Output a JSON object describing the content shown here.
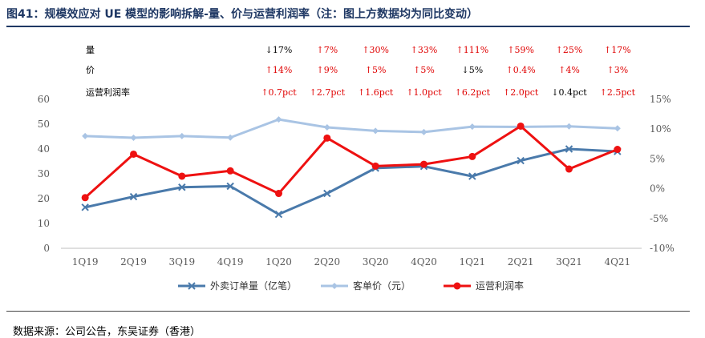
{
  "title": "图41：规模效应对 UE 模型的影响拆解-量、价与运营利润率（注：图上方数据均为同比变动）",
  "source": "数据来源：公司公告，东吴证券（香港）",
  "chart_data": {
    "type": "line",
    "categories": [
      "1Q19",
      "2Q19",
      "3Q19",
      "4Q19",
      "1Q20",
      "2Q20",
      "3Q20",
      "4Q20",
      "1Q21",
      "2Q21",
      "3Q21",
      "4Q21"
    ],
    "left_axis": {
      "ylim": [
        0,
        60
      ],
      "ticks": [
        "0",
        "10",
        "20",
        "30",
        "40",
        "50",
        "60"
      ]
    },
    "right_axis": {
      "ylim": [
        -10,
        15
      ],
      "ticks": [
        "-10%",
        "-5%",
        "0%",
        "5%",
        "10%",
        "15%"
      ]
    },
    "series": [
      {
        "name": "外卖订单量（亿笔）",
        "axis": "left",
        "color": "#4a7aab",
        "marker": "x",
        "values": [
          16.5,
          20.8,
          24.6,
          25,
          13.7,
          22.1,
          32.3,
          33,
          29,
          35.3,
          40,
          39
        ]
      },
      {
        "name": "客单价（元）",
        "axis": "left",
        "color": "#a9c4e4",
        "marker": "diamond",
        "values": [
          45.2,
          44.5,
          45.2,
          44.6,
          51.9,
          48.7,
          47.3,
          46.8,
          49,
          48.9,
          49.1,
          48.3
        ]
      },
      {
        "name": "运营利润率",
        "axis": "right",
        "color": "#ee1111",
        "marker": "circle",
        "values": [
          -1.5,
          5.8,
          2.1,
          3,
          -0.8,
          8.5,
          3.8,
          4.1,
          5.4,
          10.5,
          3.3,
          6.6
        ]
      }
    ],
    "annotation_rows": [
      {
        "label": "量",
        "cells": [
          null,
          null,
          null,
          null,
          "↓17%",
          "↑7%",
          "↑30%",
          "↑33%",
          "↑111%",
          "↑59%",
          "↑25%",
          "↑17%"
        ],
        "dir": [
          null,
          null,
          null,
          null,
          "down",
          "up",
          "up",
          "up",
          "up",
          "up",
          "up",
          "up"
        ]
      },
      {
        "label": "价",
        "cells": [
          null,
          null,
          null,
          null,
          "↑14%",
          "↑9%",
          "↑5%",
          "↑5%",
          "↓5%",
          "↑0.4%",
          "↑4%",
          "↑3%"
        ],
        "dir": [
          null,
          null,
          null,
          null,
          "up",
          "up",
          "up",
          "up",
          "down",
          "up",
          "up",
          "up"
        ]
      },
      {
        "label": "运营利润率",
        "cells": [
          null,
          null,
          null,
          null,
          "↑0.7pct",
          "↑2.7pct",
          "↑1.6pct",
          "↑1.0pct",
          "↑6.2pct",
          "↑2.0pct",
          "↓0.4pct",
          "↑2.5pct"
        ],
        "dir": [
          null,
          null,
          null,
          null,
          "up",
          "up",
          "up",
          "up",
          "up",
          "up",
          "down",
          "up"
        ]
      }
    ],
    "colors": {
      "up": "#e00000",
      "down": "#000000"
    },
    "legend_position": "bottom"
  }
}
